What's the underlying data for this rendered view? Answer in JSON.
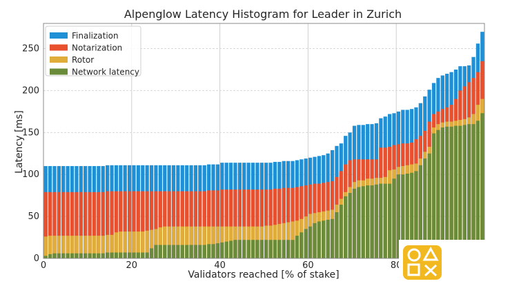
{
  "chart_data": {
    "type": "bar",
    "stacked": true,
    "title": "Alpenglow Latency Histogram for Leader in Zurich",
    "xlabel": "Validators reached [% of stake]",
    "ylabel": "Latency [ms]",
    "xlim": [
      0,
      100
    ],
    "ylim": [
      0,
      280
    ],
    "xticks": [
      0,
      20,
      40,
      60,
      80
    ],
    "yticks": [
      0,
      50,
      100,
      150,
      200,
      250
    ],
    "grid": true,
    "legend_position": "top-left",
    "colors": {
      "Finalization": "#1f8fd6",
      "Notarization": "#e8502e",
      "Rotor": "#e0ad3a",
      "Network latency": "#6a8c3a"
    },
    "x": [
      0,
      1,
      2,
      3,
      4,
      5,
      6,
      7,
      8,
      9,
      10,
      11,
      12,
      13,
      14,
      15,
      16,
      17,
      18,
      19,
      20,
      21,
      22,
      23,
      24,
      25,
      26,
      27,
      28,
      29,
      30,
      31,
      32,
      33,
      34,
      35,
      36,
      37,
      38,
      39,
      40,
      41,
      42,
      43,
      44,
      45,
      46,
      47,
      48,
      49,
      50,
      51,
      52,
      53,
      54,
      55,
      56,
      57,
      58,
      59,
      60,
      61,
      62,
      63,
      64,
      65,
      66,
      67,
      68,
      69,
      70,
      71,
      72,
      73,
      74,
      75,
      76,
      77,
      78,
      79,
      80,
      81,
      82,
      83,
      84,
      85,
      86,
      87,
      88,
      89,
      90,
      91,
      92,
      93,
      94,
      95,
      96,
      97,
      98,
      99
    ],
    "series_totals": {
      "Network latency": [
        3,
        5,
        6,
        6,
        6,
        6,
        6,
        6,
        6,
        6,
        6,
        6,
        6,
        6,
        7,
        7,
        7,
        7,
        7,
        7,
        7,
        7,
        7,
        7,
        12,
        16,
        16,
        16,
        16,
        16,
        16,
        16,
        16,
        16,
        16,
        16,
        16,
        17,
        17,
        18,
        19,
        20,
        21,
        22,
        22,
        22,
        22,
        22,
        22,
        22,
        22,
        22,
        22,
        22,
        22,
        22,
        22,
        27,
        31,
        35,
        38,
        42,
        44,
        45,
        46,
        47,
        55,
        64,
        74,
        78,
        83,
        85,
        86,
        87,
        87,
        88,
        89,
        89,
        89,
        95,
        100,
        100,
        101,
        102,
        104,
        111,
        119,
        125,
        149,
        153,
        156,
        157,
        157,
        158,
        158,
        159,
        160,
        160,
        164,
        173
      ],
      "Rotor": [
        26,
        27,
        27,
        27,
        27,
        27,
        27,
        27,
        27,
        27,
        27,
        27,
        27,
        27,
        28,
        28,
        31,
        32,
        32,
        32,
        32,
        32,
        32,
        33,
        34,
        35,
        37,
        38,
        38,
        38,
        38,
        38,
        38,
        38,
        38,
        38,
        38,
        38,
        38,
        38,
        38,
        38,
        38,
        38,
        38,
        38,
        38,
        38,
        38,
        38,
        39,
        39,
        40,
        41,
        42,
        43,
        44,
        45,
        47,
        50,
        53,
        54,
        55,
        56,
        57,
        58,
        64,
        71,
        79,
        85,
        91,
        93,
        93,
        95,
        95,
        96,
        96,
        97,
        105,
        106,
        109,
        110,
        111,
        112,
        113,
        119,
        127,
        133,
        156,
        160,
        162,
        163,
        163,
        164,
        165,
        166,
        168,
        172,
        183,
        190
      ],
      "Notarization": [
        79,
        79,
        79,
        79,
        79,
        79,
        79,
        79,
        79,
        79,
        79,
        79,
        79,
        79,
        80,
        80,
        80,
        80,
        80,
        80,
        80,
        80,
        80,
        80,
        80,
        80,
        80,
        80,
        80,
        80,
        80,
        80,
        80,
        80,
        80,
        80,
        80,
        81,
        81,
        81,
        82,
        82,
        82,
        82,
        82,
        82,
        82,
        82,
        82,
        82,
        82,
        82,
        83,
        83,
        84,
        84,
        84,
        85,
        86,
        87,
        88,
        89,
        89,
        90,
        91,
        92,
        97,
        104,
        112,
        117,
        118,
        118,
        118,
        118,
        118,
        118,
        132,
        132,
        133,
        135,
        136,
        137,
        137,
        138,
        142,
        146,
        152,
        163,
        172,
        175,
        178,
        180,
        183,
        190,
        200,
        205,
        210,
        215,
        222,
        235
      ],
      "Finalization": [
        110,
        110,
        110,
        110,
        110,
        110,
        110,
        110,
        110,
        110,
        110,
        110,
        110,
        110,
        111,
        111,
        111,
        111,
        111,
        111,
        111,
        111,
        111,
        111,
        111,
        111,
        111,
        111,
        111,
        111,
        111,
        111,
        111,
        111,
        111,
        111,
        111,
        112,
        112,
        112,
        114,
        114,
        114,
        114,
        114,
        114,
        114,
        114,
        114,
        114,
        114,
        114,
        115,
        115,
        116,
        116,
        116,
        117,
        118,
        119,
        120,
        121,
        122,
        123,
        125,
        129,
        134,
        137,
        146,
        150,
        158,
        159,
        159,
        160,
        160,
        161,
        167,
        169,
        172,
        173,
        175,
        177,
        177,
        178,
        180,
        185,
        193,
        201,
        209,
        215,
        218,
        220,
        222,
        225,
        229,
        229,
        230,
        240,
        256,
        270
      ]
    }
  }
}
